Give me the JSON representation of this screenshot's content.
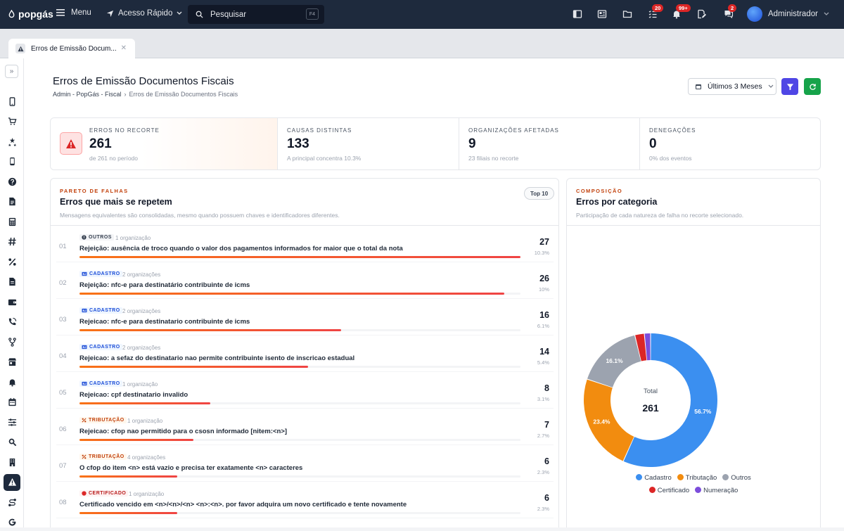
{
  "topbar": {
    "logo": "popgás",
    "menu_label": "Menu",
    "quick_access_label": "Acesso Rápido",
    "search_placeholder": "Pesquisar",
    "search_shortcut": "F4",
    "badges": {
      "tasks": "20",
      "notifications": "99+",
      "chat": "2"
    },
    "user_name": "Administrador"
  },
  "tabs": [
    {
      "label": "Erros de Emissão Docum..."
    }
  ],
  "page": {
    "title": "Erros de Emissão Documentos Fiscais",
    "breadcrumb": [
      "Admin - PopGás - Fiscal",
      "Erros de Emissão Documentos Fiscais"
    ],
    "period_label": "Últimos 3 Meses"
  },
  "kpis": [
    {
      "label": "ERROS NO RECORTE",
      "value": "261",
      "sub": "de 261 no período"
    },
    {
      "label": "CAUSAS DISTINTAS",
      "value": "133",
      "sub": "A principal concentra 10.3%"
    },
    {
      "label": "ORGANIZAÇÕES AFETADAS",
      "value": "9",
      "sub": "23 filiais no recorte"
    },
    {
      "label": "DENEGAÇÕES",
      "value": "0",
      "sub": "0% dos eventos"
    }
  ],
  "pareto": {
    "eyebrow": "PARETO DE FALHAS",
    "title": "Erros que mais se repetem",
    "description": "Mensagens equivalentes são consolidadas, mesmo quando possuem chaves e identificadores diferentes.",
    "pill": "Top 10",
    "rows": [
      {
        "rank": "01",
        "category": "OUTROS",
        "orgs": "1 organização",
        "message": "Rejeição: ausência de troco quando o valor dos pagamentos informados for maior que o total da nota",
        "count": "27",
        "pct": "10.3%",
        "share": 1.0
      },
      {
        "rank": "02",
        "category": "CADASTRO",
        "orgs": "2 organizações",
        "message": "Rejeição: nfc-e para destinatário contribuinte de icms",
        "count": "26",
        "pct": "10%",
        "share": 0.963
      },
      {
        "rank": "03",
        "category": "CADASTRO",
        "orgs": "2 organizações",
        "message": "Rejeicao: nfc-e para destinatario contribuinte de icms",
        "count": "16",
        "pct": "6.1%",
        "share": 0.593
      },
      {
        "rank": "04",
        "category": "CADASTRO",
        "orgs": "2 organizações",
        "message": "Rejeicao: a sefaz do destinatario nao permite contribuinte isento de inscricao estadual",
        "count": "14",
        "pct": "5.4%",
        "share": 0.519
      },
      {
        "rank": "05",
        "category": "CADASTRO",
        "orgs": "1 organização",
        "message": "Rejeicao: cpf destinatario invalido",
        "count": "8",
        "pct": "3.1%",
        "share": 0.296
      },
      {
        "rank": "06",
        "category": "TRIBUTAÇÃO",
        "orgs": "1 organização",
        "message": "Rejeicao: cfop nao permitido para o csosn informado [nitem:<n>]",
        "count": "7",
        "pct": "2.7%",
        "share": 0.259
      },
      {
        "rank": "07",
        "category": "TRIBUTAÇÃO",
        "orgs": "4 organizações",
        "message": "O cfop do item <n> está vazio e precisa ter exatamente <n> caracteres",
        "count": "6",
        "pct": "2.3%",
        "share": 0.222
      },
      {
        "rank": "08",
        "category": "CERTIFICADO",
        "orgs": "1 organização",
        "message": "Certificado vencido em <n>/<n>/<n> <n>:<n>. por favor adquira um novo certificado e tente novamente",
        "count": "6",
        "pct": "2.3%",
        "share": 0.222
      }
    ]
  },
  "composition": {
    "eyebrow": "COMPOSIÇÃO",
    "title": "Erros por categoria",
    "description": "Participação de cada natureza de falha no recorte selecionado.",
    "center_label": "Total",
    "center_value": "261"
  },
  "chart_data": {
    "type": "pie",
    "title": "Erros por categoria",
    "center_label": "Total",
    "center_value": 261,
    "series": [
      {
        "name": "Cadastro",
        "value": 56.7,
        "label": "56.7%",
        "color": "#3b8ff0"
      },
      {
        "name": "Tributação",
        "value": 23.4,
        "label": "23.4%",
        "color": "#f28c0f"
      },
      {
        "name": "Outros",
        "value": 16.1,
        "label": "16.1%",
        "color": "#9ca3af"
      },
      {
        "name": "Certificado",
        "value": 2.3,
        "label": "",
        "color": "#dc2626"
      },
      {
        "name": "Numeração",
        "value": 1.5,
        "label": "",
        "color": "#7c4ddb"
      }
    ],
    "legend_position": "bottom"
  },
  "colors": {
    "topbar": "#1e2a3d",
    "accent_filter": "#4f46e5",
    "accent_refresh": "#16a34a",
    "category_colors": {
      "OUTROS": "#374151",
      "CADASTRO": "#1d4ed8",
      "TRIBUTAÇÃO": "#c2410c",
      "CERTIFICADO": "#b91c1c"
    }
  },
  "sidebar_icons": [
    "mobile-icon",
    "cart-icon",
    "stars-icon",
    "phone-icon",
    "help-icon",
    "document-icon",
    "calculator-icon",
    "hash-icon",
    "percent-icon",
    "file-icon",
    "wallet-icon",
    "call-icon",
    "branch-icon",
    "store-icon",
    "bell-icon",
    "calendar-icon",
    "sliders-icon",
    "zoom-icon",
    "building-icon",
    "warning-icon",
    "route-icon",
    "google-icon"
  ]
}
